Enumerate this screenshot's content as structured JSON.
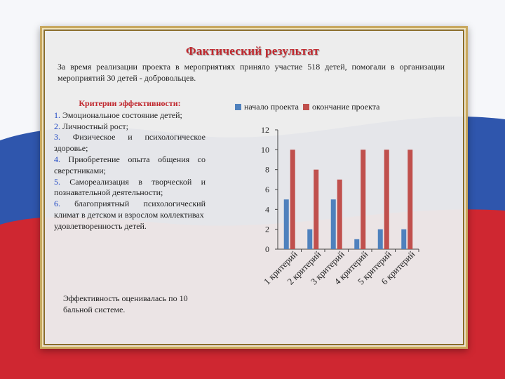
{
  "slide": {
    "title": "Фактический результат",
    "intro": "За время реализации проекта в мероприятиях приняло участие 518 детей, помогали в организации мероприятий 30 детей - добровольцев.",
    "criteria_heading": "Критерии эффективности:",
    "criteria": [
      {
        "num": "1.",
        "text": "Эмоциональное состояние детей;"
      },
      {
        "num": "2.",
        "text": "Личностный рост;"
      },
      {
        "num": "3.",
        "text": "Физическое и психологическое здоровье;"
      },
      {
        "num": "4.",
        "text": "Приобретение опыта общения со сверстниками;"
      },
      {
        "num": "5.",
        "text": "Самореализация в творческой и познавательной деятельности;"
      },
      {
        "num": "6.",
        "text": "благоприятный психологический климат в детском и взрослом коллективах"
      }
    ],
    "criteria_tail": "удовлетворенность детей.",
    "footer_note": "Эффективность оценивалась по 10 бальной системе."
  },
  "colors": {
    "title": "#c0282e",
    "series_start": "#4f81bd",
    "series_end": "#c0504d"
  },
  "chart_data": {
    "type": "bar",
    "categories": [
      "1 критерий",
      "2 критерий",
      "3 критерий",
      "4 критерий",
      "5 критерий",
      "6 критерий"
    ],
    "series": [
      {
        "name": "начало проекта",
        "values": [
          5,
          2,
          5,
          1,
          2,
          2
        ]
      },
      {
        "name": "окончание проекта",
        "values": [
          10,
          8,
          7,
          10,
          10,
          10
        ]
      }
    ],
    "yticks": [
      0,
      2,
      4,
      6,
      8,
      10,
      12
    ],
    "ylim": [
      0,
      12
    ],
    "legend_position": "top",
    "grid": false
  }
}
